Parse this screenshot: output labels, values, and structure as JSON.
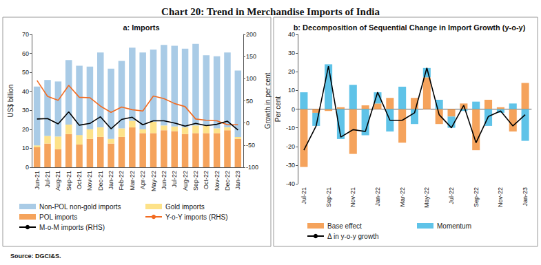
{
  "title": "Chart 20: Trend in Merchandise Imports of India",
  "source": "Source: DGCI&S.",
  "chart_data": [
    {
      "type": "bar",
      "title": "a: Imports",
      "stacked": true,
      "grid": false,
      "ylabel": "US$ billion",
      "y2label": "Growth in per cent",
      "categories": [
        "Jun-21",
        "Jul-21",
        "Aug-21",
        "Sep-21",
        "Oct-21",
        "Nov-21",
        "Dec-21",
        "Jan-22",
        "Feb-22",
        "Mar-22",
        "Apr-22",
        "May-22",
        "Jun-22",
        "Jul-22",
        "Aug-22",
        "Sep-22",
        "Oct-22",
        "Nov-22",
        "Dec-22",
        "Jan-23"
      ],
      "ylim": [
        0,
        70
      ],
      "yticks": [
        0,
        10,
        20,
        30,
        40,
        50,
        60,
        70
      ],
      "y2lim": [
        -100,
        200
      ],
      "y2ticks": [
        -100,
        -50,
        0,
        50,
        100,
        150,
        200
      ],
      "series": [
        {
          "name": "POL imports",
          "type": "bar",
          "color": "#f5a35c",
          "values": [
            10.5,
            12.5,
            9.5,
            17.5,
            12,
            15,
            16,
            12.5,
            16,
            21,
            18,
            18,
            19.5,
            19,
            17.5,
            18,
            18,
            18,
            19.5,
            15
          ]
        },
        {
          "name": "Gold imports",
          "type": "bar",
          "color": "#fde289",
          "values": [
            1,
            4,
            6.7,
            5,
            5,
            5,
            5,
            2.5,
            4.5,
            3.5,
            2,
            6,
            2.5,
            2.5,
            3.5,
            4,
            4,
            2.5,
            1.5,
            1
          ]
        },
        {
          "name": "Non-POL non-gold imports",
          "type": "bar",
          "color": "#a9cbe6",
          "values": [
            31,
            29.5,
            29,
            34,
            36.5,
            33,
            39.5,
            37,
            35.5,
            38.5,
            40.5,
            38,
            42.5,
            42.5,
            41.5,
            43,
            37,
            38,
            39.5,
            35
          ]
        },
        {
          "name": "Y-o-Y imports (RHS)",
          "type": "line",
          "axis": "y2",
          "color": "#f26b21",
          "values": [
            96,
            60,
            51,
            85,
            58,
            57,
            38,
            24,
            36,
            30,
            27,
            61,
            55,
            44,
            37,
            9,
            6,
            5,
            -4,
            -4
          ]
        },
        {
          "name": "M-o-M imports (RHS)",
          "type": "line",
          "axis": "y2",
          "color": "#000000",
          "values": [
            9,
            10,
            -2,
            25,
            -5,
            -1,
            14,
            -13,
            8,
            13,
            -4,
            5,
            5,
            0,
            -7,
            -1,
            -6,
            -3,
            4,
            -16
          ]
        }
      ]
    },
    {
      "type": "bar",
      "title": "b: Decomposition of Sequential Change in Import Growth (y-o-y)",
      "stacked": true,
      "grid": false,
      "ylabel": "Per cent",
      "categories": [
        "Jul-21",
        null,
        "Sep-21",
        null,
        "Nov-21",
        null,
        "Jan-22",
        null,
        "Mar-22",
        null,
        "May-22",
        null,
        "Jul-22",
        null,
        "Sep-22",
        null,
        "Nov-22",
        null,
        "Jan-23"
      ],
      "ylim": [
        -40,
        40
      ],
      "yticks": [
        -40,
        -30,
        -20,
        -10,
        0,
        10,
        20,
        30,
        40
      ],
      "series": [
        {
          "name": "Base effect",
          "type": "bar",
          "color": "#f5a35c",
          "values": [
            -31,
            -2,
            -1,
            1,
            -24,
            2,
            3,
            6,
            -18,
            6,
            17,
            -8,
            -4,
            3,
            -22,
            5,
            1,
            -12,
            14
          ]
        },
        {
          "name": "Momentum",
          "type": "bar",
          "color": "#5fc3e8",
          "values": [
            9,
            -7,
            24,
            -16,
            13,
            -14,
            6,
            -12,
            12,
            -8,
            5,
            5,
            -6,
            -1,
            4,
            -9,
            -2,
            3,
            -17
          ]
        },
        {
          "name": "Δ in y-o-y growth",
          "type": "line",
          "color": "#000000",
          "values": [
            -22,
            -9,
            23,
            -15,
            -11,
            -12,
            9,
            -6,
            -6,
            -2,
            22,
            -3,
            -10,
            2,
            -18,
            -4,
            -1,
            -9,
            -3
          ]
        }
      ]
    }
  ]
}
